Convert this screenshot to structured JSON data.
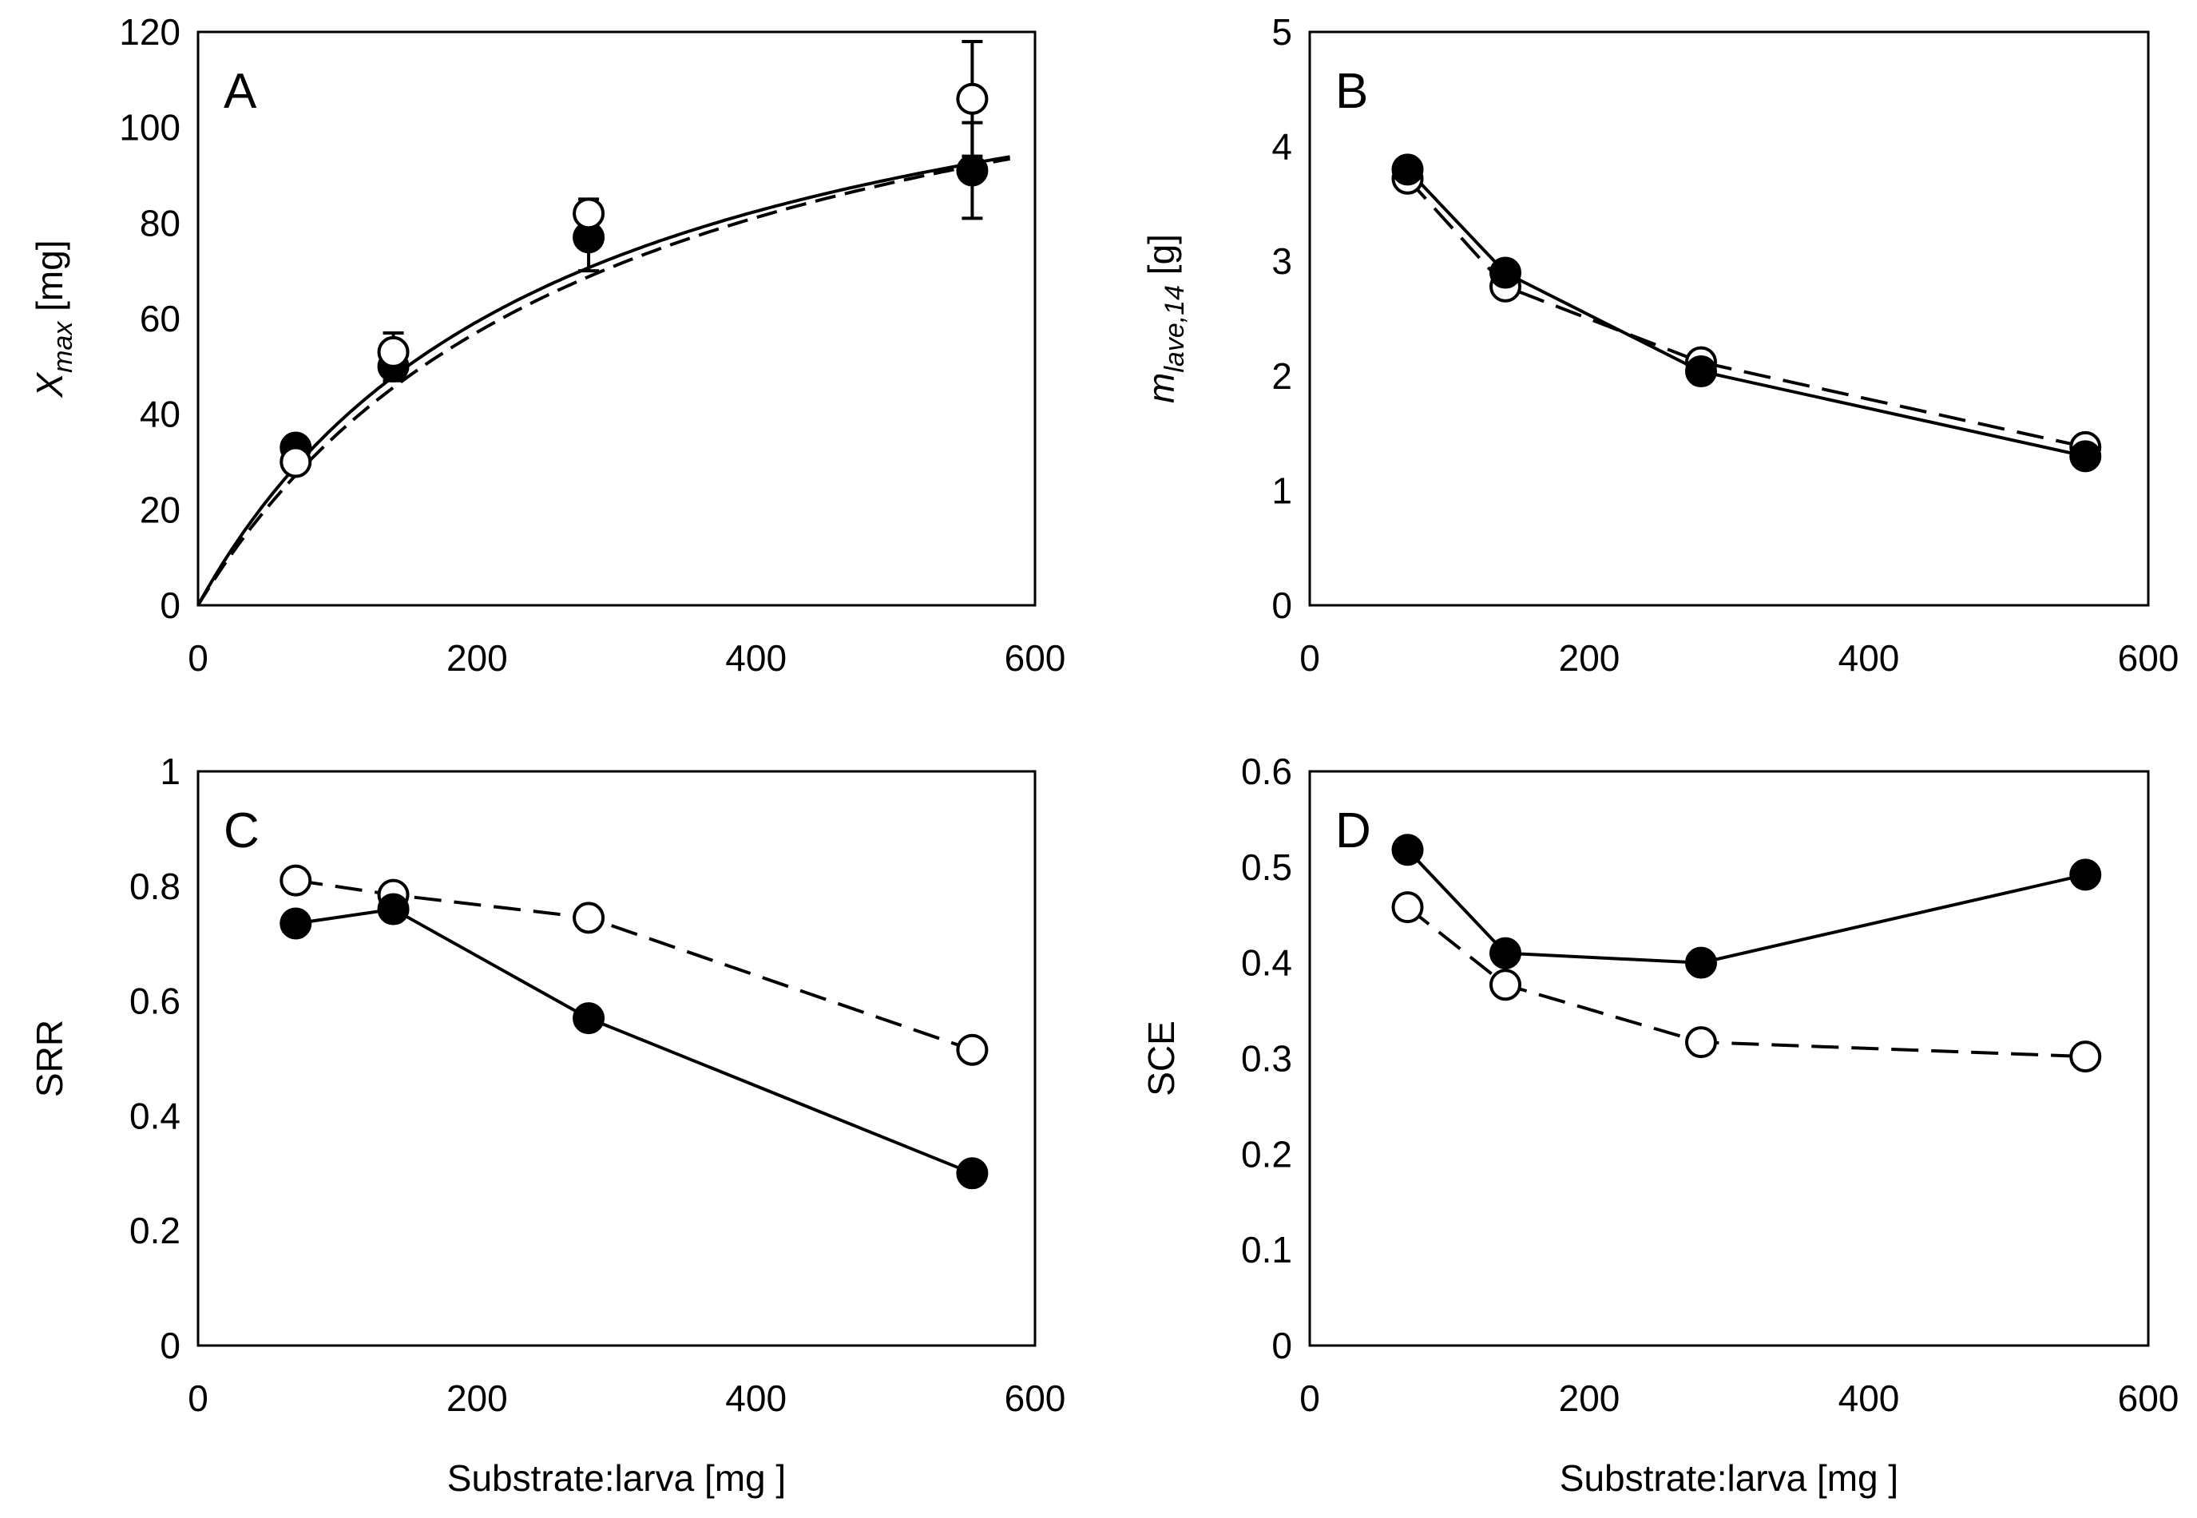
{
  "chart_data": [
    {
      "type": "scatter",
      "panel_label": "A",
      "ylabel_main": "X",
      "ylabel_sub": "max",
      "ylabel_unit": " [mg]",
      "xlabel": "",
      "xlim": [
        0,
        600
      ],
      "ylim": [
        0,
        120
      ],
      "xticks": [
        "0",
        "200",
        "400",
        "600"
      ],
      "yticks": [
        "0",
        "20",
        "40",
        "60",
        "80",
        "100",
        "120"
      ],
      "series": [
        {
          "name": "filled",
          "marker": "filled-circle",
          "x": [
            70,
            140,
            280,
            555
          ],
          "y": [
            33,
            50,
            77,
            91
          ],
          "yerr": [
            2,
            3,
            7,
            10
          ]
        },
        {
          "name": "open",
          "marker": "open-circle",
          "x": [
            70,
            140,
            280,
            555
          ],
          "y": [
            30,
            53,
            82,
            106
          ],
          "yerr": [
            2,
            4,
            3,
            12
          ]
        }
      ],
      "fit_curves": [
        {
          "for": "filled",
          "style": "solid",
          "model": "Vmax*x/(K+x)",
          "Vmax": 135,
          "K": 255
        },
        {
          "for": "open",
          "style": "dashed",
          "model": "Vmax*x/(K+x)",
          "Vmax": 140,
          "K": 290
        }
      ]
    },
    {
      "type": "line",
      "panel_label": "B",
      "ylabel_main": "m",
      "ylabel_sub": "lave,14",
      "ylabel_unit": " [g]",
      "xlabel": "",
      "xlim": [
        0,
        600
      ],
      "ylim": [
        0,
        5
      ],
      "xticks": [
        "0",
        "200",
        "400",
        "600"
      ],
      "yticks": [
        "0",
        "1",
        "2",
        "3",
        "4",
        "5"
      ],
      "series": [
        {
          "name": "open",
          "marker": "open-circle",
          "style": "dashed",
          "x": [
            70,
            140,
            280,
            555
          ],
          "y": [
            3.72,
            2.78,
            2.12,
            1.38
          ]
        },
        {
          "name": "filled",
          "marker": "filled-circle",
          "style": "solid",
          "x": [
            70,
            140,
            280,
            555
          ],
          "y": [
            3.8,
            2.9,
            2.04,
            1.3
          ]
        }
      ]
    },
    {
      "type": "line",
      "panel_label": "C",
      "ylabel_main": "SRR",
      "ylabel_sub": "",
      "ylabel_unit": "",
      "xlabel": "Substrate:larva [mg ]",
      "xlim": [
        0,
        600
      ],
      "ylim": [
        0,
        1
      ],
      "xticks": [
        "0",
        "200",
        "400",
        "600"
      ],
      "yticks": [
        "0",
        "0.2",
        "0.4",
        "0.6",
        "0.8",
        "1"
      ],
      "series": [
        {
          "name": "open",
          "marker": "open-circle",
          "style": "dashed",
          "x": [
            70,
            140,
            280,
            555
          ],
          "y": [
            0.81,
            0.785,
            0.745,
            0.515
          ]
        },
        {
          "name": "filled",
          "marker": "filled-circle",
          "style": "solid",
          "x": [
            70,
            140,
            280,
            555
          ],
          "y": [
            0.735,
            0.76,
            0.57,
            0.3
          ]
        }
      ]
    },
    {
      "type": "line",
      "panel_label": "D",
      "ylabel_main": "SCE",
      "ylabel_sub": "",
      "ylabel_unit": "",
      "xlabel": "Substrate:larva [mg ]",
      "xlim": [
        0,
        600
      ],
      "ylim": [
        0,
        0.6
      ],
      "xticks": [
        "0",
        "200",
        "400",
        "600"
      ],
      "yticks": [
        "0",
        "0.1",
        "0.2",
        "0.3",
        "0.4",
        "0.5",
        "0.6"
      ],
      "series": [
        {
          "name": "open",
          "marker": "open-circle",
          "style": "dashed",
          "x": [
            70,
            140,
            280,
            555
          ],
          "y": [
            0.458,
            0.377,
            0.317,
            0.302
          ]
        },
        {
          "name": "filled",
          "marker": "filled-circle",
          "style": "solid",
          "x": [
            70,
            140,
            280,
            555
          ],
          "y": [
            0.518,
            0.41,
            0.4,
            0.492
          ]
        }
      ]
    }
  ]
}
